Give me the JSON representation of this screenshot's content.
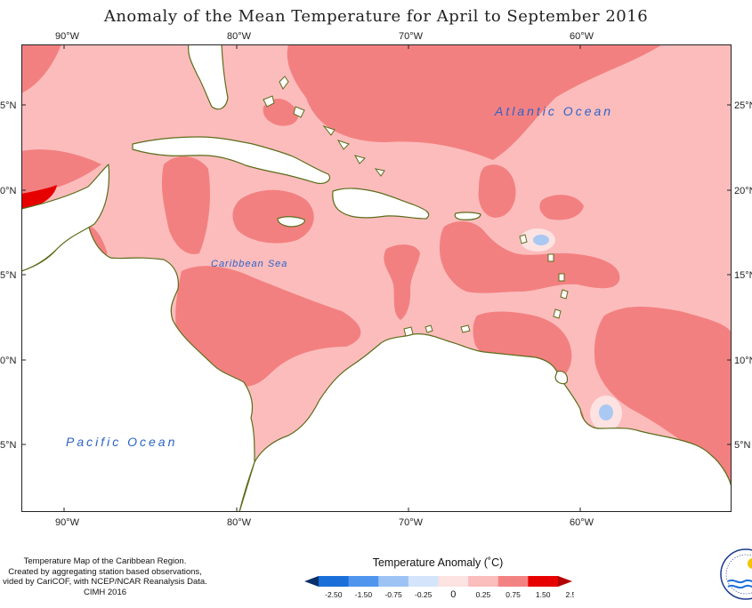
{
  "title": "Anomaly of the Mean Temperature for April to September 2016",
  "axes": {
    "lon_labels": [
      "90°W",
      "80°W",
      "70°W",
      "60°W"
    ],
    "lat_labels_left": [
      "5°N",
      "0°N",
      "5°N",
      "0°N",
      "5°N"
    ],
    "lat_labels_right": [
      "25°N",
      "20°N",
      "15°N",
      "10°N",
      "5°N"
    ]
  },
  "labels": {
    "atlantic": "Atlantic Ocean",
    "caribbean": "Caribbean Sea",
    "pacific": "Pacific Ocean"
  },
  "credit": [
    "Temperature Map of the Caribbean Region.",
    "Created by aggregating station based observations,",
    "vided by CariCOF, with NCEP/NCAR Reanalysis Data.",
    "CIMH 2016"
  ],
  "legend": {
    "title": "Temperature Anomaly (˚C)",
    "ticks": [
      "-2.50",
      "-1.50",
      "-0.75",
      "-0.25",
      "0",
      "0.25",
      "0.75",
      "1.50",
      "2.50"
    ],
    "colors": [
      "#08306b",
      "#1a6fd8",
      "#4f95ee",
      "#9dc3f5",
      "#d4e4fb",
      "#fde2e2",
      "#fbbcbc",
      "#f38383",
      "#e60000",
      "#b40000"
    ]
  },
  "colors": {
    "land": "#ffffff",
    "coast": "#5b6d1a",
    "anom_025_075": "#fcbcbc",
    "anom_075_150": "#f38080",
    "anom_150_250": "#e60000",
    "anom_0_025": "#fde2e2",
    "anom_neg": "#a9c8f2"
  }
}
